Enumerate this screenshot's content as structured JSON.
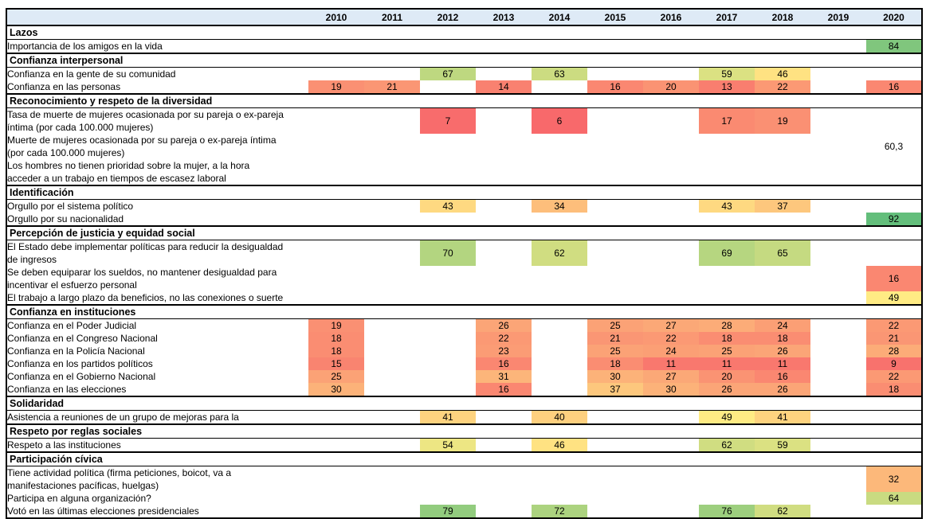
{
  "chart_data": {
    "type": "heatmap",
    "columns": [
      "2010",
      "2011",
      "2012",
      "2013",
      "2014",
      "2015",
      "2016",
      "2017",
      "2018",
      "2019",
      "2020"
    ],
    "color_scale": {
      "min_value": 6,
      "mid_value": 49,
      "max_value": 92,
      "min_color": "#F8696B",
      "mid_color": "#FFEB84",
      "max_color": "#63BE7B"
    },
    "sections": [
      {
        "title": "Lazos",
        "rows": [
          {
            "label": "Importancia de los amigos en la vida",
            "lines": 1,
            "values": [
              null,
              null,
              null,
              null,
              null,
              null,
              null,
              null,
              null,
              null,
              84
            ]
          }
        ]
      },
      {
        "title": "Confianza interpersonal",
        "rows": [
          {
            "label": "Confianza en la gente de su comunidad",
            "lines": 1,
            "values": [
              null,
              null,
              67,
              null,
              63,
              null,
              null,
              59,
              46,
              null,
              null
            ]
          },
          {
            "label": "Confianza en las personas",
            "lines": 1,
            "values": [
              19,
              21,
              null,
              14,
              null,
              16,
              20,
              13,
              22,
              null,
              16
            ]
          }
        ]
      },
      {
        "title": "Reconocimiento y respeto de la diversidad",
        "rows": [
          {
            "label": "Tasa de muerte de mujeres ocasionada por su pareja o ex-pareja\níntima (por cada 100.000 mujeres)",
            "lines": 2,
            "values": [
              null,
              null,
              7,
              null,
              6,
              null,
              null,
              17,
              19,
              null,
              null
            ]
          },
          {
            "label": "Muerte de mujeres ocasionada por su pareja o ex-pareja íntima\n(por cada 100.000 mujeres)",
            "lines": 2,
            "values": [
              null,
              null,
              null,
              null,
              null,
              null,
              null,
              null,
              null,
              null,
              "60,3"
            ]
          },
          {
            "label": "Los hombres no tienen prioridad sobre la mujer, a la hora\nacceder a un trabajo en tiempos de escasez laboral",
            "lines": 2,
            "values": [
              null,
              null,
              null,
              null,
              null,
              null,
              null,
              null,
              null,
              null,
              null
            ]
          }
        ]
      },
      {
        "title": "Identificación",
        "rows": [
          {
            "label": "Orgullo por el sistema político",
            "lines": 1,
            "values": [
              null,
              null,
              43,
              null,
              34,
              null,
              null,
              43,
              37,
              null,
              null
            ]
          },
          {
            "label": "Orgullo por su nacionalidad",
            "lines": 1,
            "values": [
              null,
              null,
              null,
              null,
              null,
              null,
              null,
              null,
              null,
              null,
              92
            ]
          }
        ]
      },
      {
        "title": "Percepción de justicia y equidad social",
        "rows": [
          {
            "label": "El Estado debe implementar políticas para reducir la desigualdad\nde ingresos",
            "lines": 2,
            "values": [
              null,
              null,
              70,
              null,
              62,
              null,
              null,
              69,
              65,
              null,
              null
            ]
          },
          {
            "label": "Se deben equiparar los sueldos, no mantener desigualdad para\nincentivar el esfuerzo personal",
            "lines": 2,
            "values": [
              null,
              null,
              null,
              null,
              null,
              null,
              null,
              null,
              null,
              null,
              16
            ]
          },
          {
            "label": "El trabajo a largo plazo da beneficios, no las conexiones o suerte",
            "lines": 1,
            "values": [
              null,
              null,
              null,
              null,
              null,
              null,
              null,
              null,
              null,
              null,
              49
            ]
          }
        ]
      },
      {
        "title": "Confianza en instituciones",
        "rows": [
          {
            "label": "Confianza en el Poder Judicial",
            "lines": 1,
            "values": [
              19,
              null,
              null,
              26,
              null,
              25,
              27,
              28,
              24,
              null,
              22
            ]
          },
          {
            "label": "Confianza en el Congreso Nacional",
            "lines": 1,
            "values": [
              18,
              null,
              null,
              22,
              null,
              21,
              22,
              18,
              18,
              null,
              21
            ]
          },
          {
            "label": "Confianza en la Policía Nacional",
            "lines": 1,
            "values": [
              18,
              null,
              null,
              23,
              null,
              25,
              24,
              25,
              26,
              null,
              28
            ]
          },
          {
            "label": "Confianza en los partidos políticos",
            "lines": 1,
            "values": [
              15,
              null,
              null,
              16,
              null,
              18,
              11,
              11,
              11,
              null,
              9
            ]
          },
          {
            "label": "Confianza en el Gobierno Nacional",
            "lines": 1,
            "values": [
              25,
              null,
              null,
              31,
              null,
              30,
              27,
              20,
              16,
              null,
              22
            ]
          },
          {
            "label": "Confianza en las elecciones",
            "lines": 1,
            "values": [
              30,
              null,
              null,
              16,
              null,
              37,
              30,
              26,
              26,
              null,
              18
            ]
          }
        ]
      },
      {
        "title": "Solidaridad",
        "rows": [
          {
            "label": "Asistencia a reuniones de un grupo de mejoras para la",
            "lines": 1,
            "values": [
              null,
              null,
              41,
              null,
              40,
              null,
              null,
              49,
              41,
              null,
              null
            ]
          }
        ]
      },
      {
        "title": "Respeto por reglas sociales",
        "rows": [
          {
            "label": "Respeto a las instituciones",
            "lines": 1,
            "values": [
              null,
              null,
              54,
              null,
              46,
              null,
              null,
              62,
              59,
              null,
              null
            ]
          }
        ]
      },
      {
        "title": "Participación cívica",
        "rows": [
          {
            "label": "Tiene actividad política (firma peticiones, boicot, va a\nmanifestaciones pacíficas, huelgas)",
            "lines": 2,
            "values": [
              null,
              null,
              null,
              null,
              null,
              null,
              null,
              null,
              null,
              null,
              32
            ]
          },
          {
            "label": "Participa en alguna organización?",
            "lines": 1,
            "values": [
              null,
              null,
              null,
              null,
              null,
              null,
              null,
              null,
              null,
              null,
              64
            ]
          },
          {
            "label": "Votó en las últimas elecciones presidenciales",
            "lines": 1,
            "values": [
              null,
              null,
              79,
              null,
              72,
              null,
              null,
              76,
              62,
              null,
              null
            ]
          }
        ]
      }
    ],
    "layout": {
      "label_col_width": 379,
      "year_col_width": 70,
      "single_row_height": 16,
      "double_row_height": 32
    }
  },
  "styles": {
    "header_bg": "#DEEAF6",
    "border_color": "#000000",
    "text_color": "#000000"
  }
}
